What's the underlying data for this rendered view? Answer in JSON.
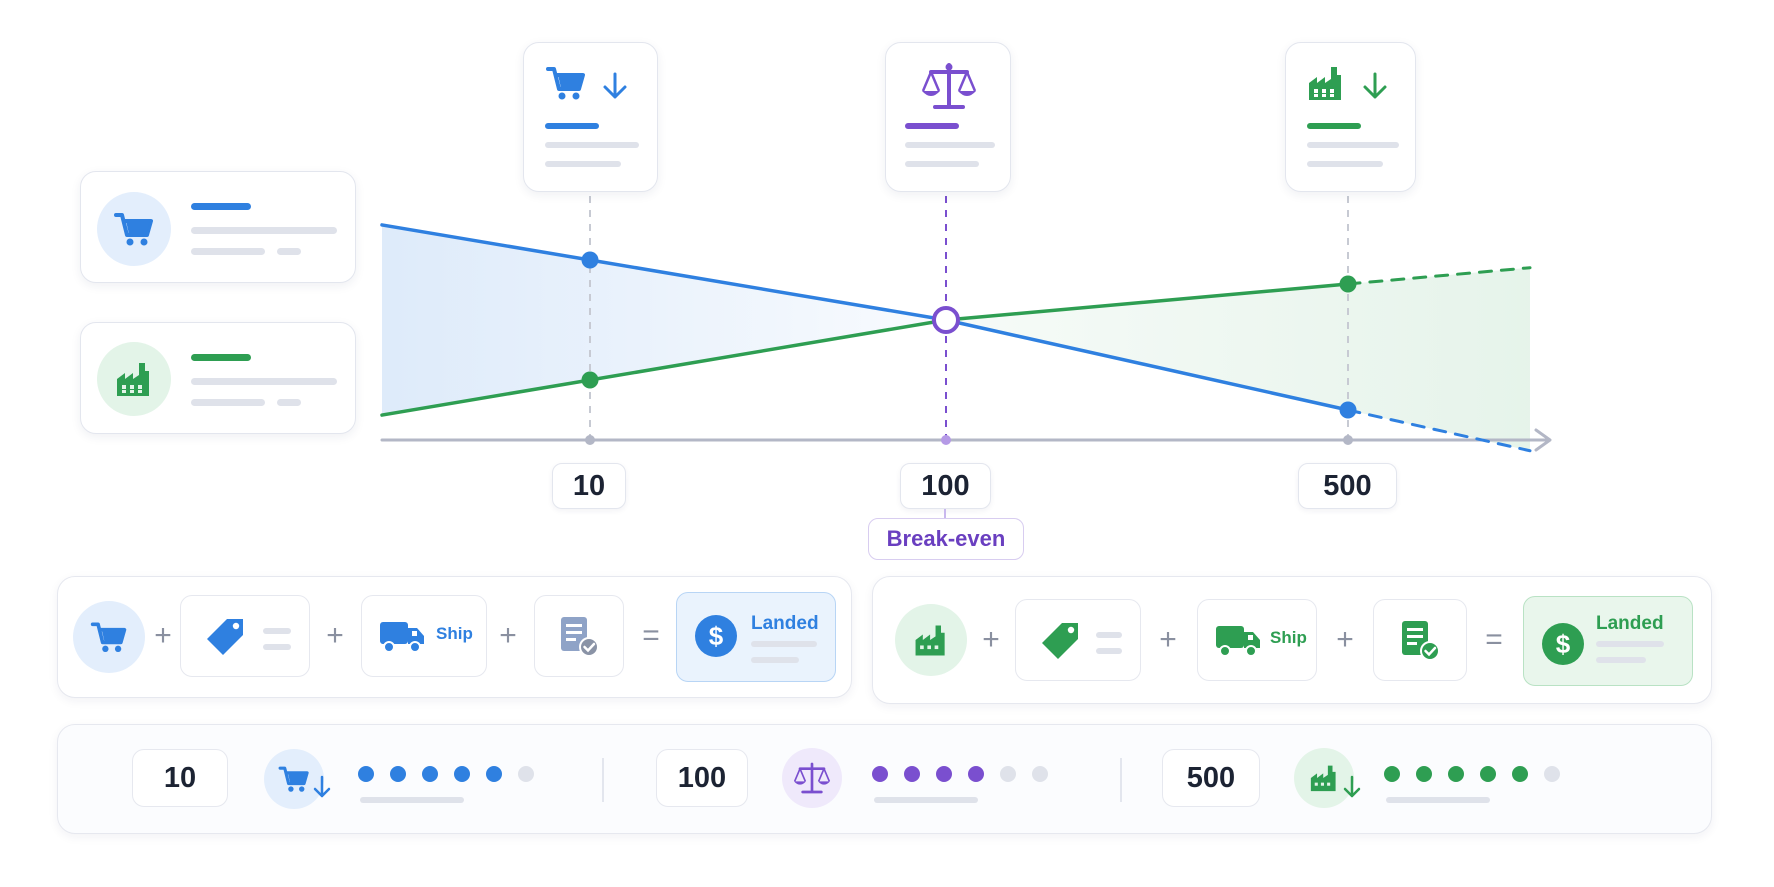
{
  "axis": {
    "ticks": [
      "10",
      "100",
      "500"
    ],
    "break_even_label": "Break-even"
  },
  "chart_data": {
    "type": "line",
    "x": [
      10,
      100,
      500
    ],
    "series": [
      {
        "values": [
          4.0,
          3.0,
          1.5
        ],
        "color": "#2f80e0",
        "projected": true
      },
      {
        "values": [
          2.0,
          3.0,
          3.6
        ],
        "color": "#2e9e52",
        "projected": true
      }
    ],
    "break_even_x": 100
  },
  "cost_rows": {
    "retail": {
      "ship_label": "Ship",
      "landed_label": "Landed",
      "plus": "+",
      "equals": "="
    },
    "wholesale": {
      "ship_label": "Ship",
      "landed_label": "Landed",
      "plus": "+",
      "equals": "="
    }
  },
  "summary": {
    "items": [
      {
        "quantity": "10",
        "filled": 5,
        "total": 6
      },
      {
        "quantity": "100",
        "filled": 4,
        "total": 6
      },
      {
        "quantity": "500",
        "filled": 5,
        "total": 6
      }
    ]
  },
  "colors": {
    "retail": "#2f80e0",
    "wholesale": "#2e9e52",
    "break_even": "#7a4fcf",
    "muted": "#dfe2ea"
  },
  "icons": {
    "retail": "cart-icon",
    "wholesale": "factory-icon",
    "break_even": "scale-icon",
    "discount": "tag-icon",
    "shipping": "truck-icon",
    "duties": "document-check-icon",
    "landed": "dollar-icon",
    "trend_down": "arrow-down-icon"
  }
}
